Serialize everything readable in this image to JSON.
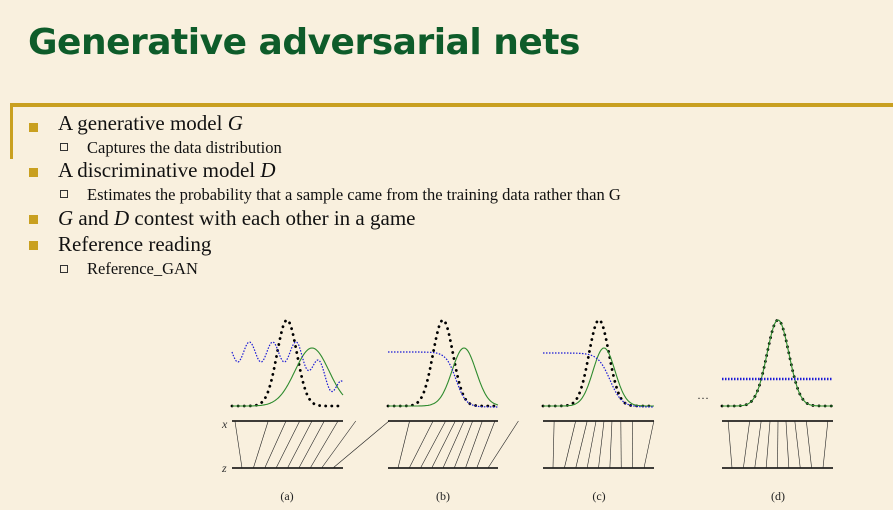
{
  "title": "Generative adversarial nets",
  "bullets": {
    "b1_text": "A generative model ",
    "b1_var": "G",
    "b1_sub": "Captures the data distribution",
    "b2_text": "A discriminative model ",
    "b2_var": "D",
    "b2_sub": "Estimates the probability that a sample came from the training data rather than G",
    "b3_var_g": "G",
    "b3_and": " and ",
    "b3_var_d": "D",
    "b3_rest": " contest with each other in a game",
    "b4_text": "Reference reading",
    "b4_sub": "Reference_GAN"
  },
  "figure": {
    "panel_labels": [
      "(a)",
      "(b)",
      "(c)",
      "(d)"
    ],
    "x_label": "x",
    "z_label": "z",
    "ellipsis": "···"
  },
  "colors": {
    "title": "#0e5c2a",
    "accent": "#c9a020",
    "generator_curve": "#2e8b2e",
    "discriminator_curve": "#1a1ad6",
    "data_curve": "#000000"
  }
}
